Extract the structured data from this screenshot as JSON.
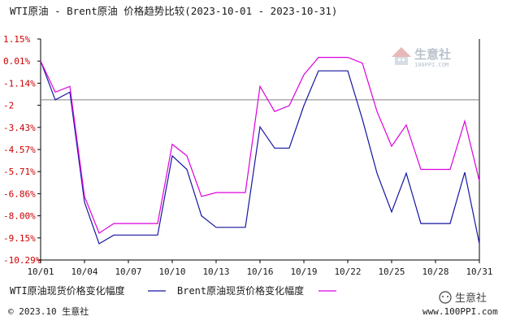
{
  "chart_data": {
    "type": "line",
    "title": "WTI原油 - Brent原油  价格趋势比较(2023-10-01 - 2023-10-31)",
    "x": [
      "10/01",
      "10/02",
      "10/03",
      "10/04",
      "10/05",
      "10/06",
      "10/07",
      "10/08",
      "10/09",
      "10/10",
      "10/11",
      "10/12",
      "10/13",
      "10/14",
      "10/15",
      "10/16",
      "10/17",
      "10/18",
      "10/19",
      "10/20",
      "10/21",
      "10/22",
      "10/23",
      "10/24",
      "10/25",
      "10/26",
      "10/27",
      "10/28",
      "10/29",
      "10/30",
      "10/31"
    ],
    "x_tick_labels": [
      "10/01",
      "10/04",
      "10/07",
      "10/10",
      "10/13",
      "10/16",
      "10/19",
      "10/22",
      "10/25",
      "10/28",
      "10/31"
    ],
    "y_tick_labels": [
      "1.15%",
      "0.01%",
      "-1.14%",
      "-2",
      "-3.43%",
      "-4.57%",
      "-5.71%",
      "-6.86%",
      "-8.00%",
      "-9.15%",
      "-10.29%"
    ],
    "ylim": [
      -10.29,
      1.15
    ],
    "reference_line": -2.0,
    "series": [
      {
        "name": "WTI原油现货价格变化幅度",
        "color": "#1515a0",
        "values": [
          0.01,
          -2.0,
          -1.6,
          -7.3,
          -9.45,
          -9.0,
          -9.0,
          -9.0,
          -9.0,
          -4.9,
          -5.6,
          -8.0,
          -8.6,
          -8.6,
          -8.6,
          -3.4,
          -4.5,
          -4.5,
          -2.3,
          -0.5,
          -0.5,
          -0.5,
          -3.0,
          -5.8,
          -7.8,
          -5.8,
          -8.4,
          -8.4,
          -8.4,
          -5.75,
          -9.45
        ]
      },
      {
        "name": "Brent原油现货价格变化幅度",
        "color": "#dd00dd",
        "values": [
          0.01,
          -1.6,
          -1.3,
          -7.0,
          -8.9,
          -8.4,
          -8.4,
          -8.4,
          -8.4,
          -4.3,
          -4.9,
          -7.0,
          -6.8,
          -6.8,
          -6.8,
          -1.3,
          -2.6,
          -2.3,
          -0.7,
          0.2,
          0.2,
          0.2,
          -0.1,
          -2.6,
          -4.4,
          -3.3,
          -5.6,
          -5.6,
          -5.6,
          -3.1,
          -6.2
        ]
      }
    ],
    "grid": false
  },
  "footer": {
    "copyright": "© 2023.10 生意社",
    "site": "www.100PPI.com"
  },
  "watermark": {
    "brand": "生意社",
    "sub": "100PPI.COM"
  },
  "social_mark": {
    "brand": "生意社"
  },
  "colors": {
    "axis": "#000000",
    "reference_line": "#808080",
    "y_tick": "#cc0000"
  }
}
